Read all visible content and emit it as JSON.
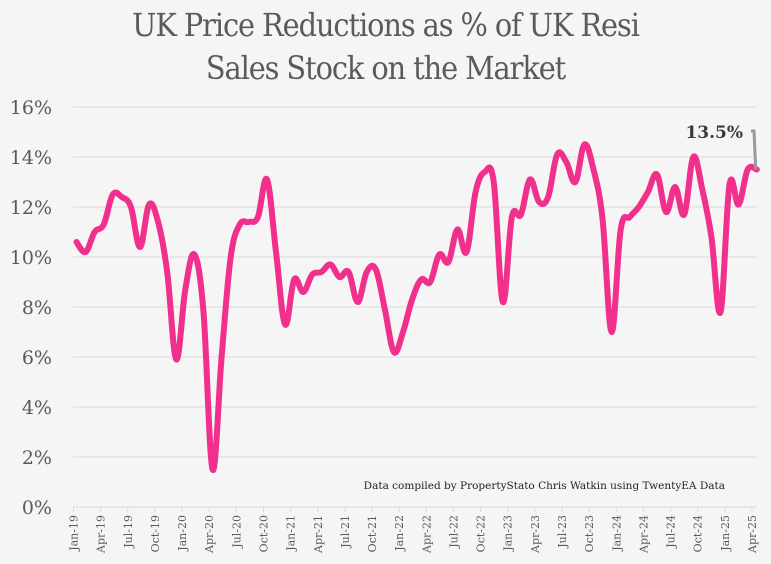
{
  "chart_data": {
    "type": "line",
    "title": "UK Price Reductions as % of UK Resi Sales Stock on the Market",
    "title_lines": [
      "UK Price Reductions as % of UK Resi",
      "Sales Stock on the Market"
    ],
    "xlabel": "",
    "ylabel": "",
    "ylim": [
      0,
      16
    ],
    "yticks": [
      0,
      2,
      4,
      6,
      8,
      10,
      12,
      14,
      16
    ],
    "ytick_labels": [
      "0%",
      "2%",
      "4%",
      "6%",
      "8%",
      "10%",
      "12%",
      "14%",
      "16%"
    ],
    "grid": true,
    "legend": "none",
    "x_tick_labels": [
      "Jan-19",
      "Apr-19",
      "Jul-19",
      "Oct-19",
      "Jan-20",
      "Apr-20",
      "Jul-20",
      "Oct-20",
      "Jan-21",
      "Apr-21",
      "Jul-21",
      "Oct-21",
      "Jan-22",
      "Apr-22",
      "Jul-22",
      "Oct-22",
      "Jan-23",
      "Apr-23",
      "Jul-23",
      "Oct-23",
      "Jan-24",
      "Apr-24",
      "Jul-24",
      "Oct-24",
      "Jan-25",
      "Apr-25"
    ],
    "x": [
      "Jan-19",
      "Feb-19",
      "Mar-19",
      "Apr-19",
      "May-19",
      "Jun-19",
      "Jul-19",
      "Aug-19",
      "Sep-19",
      "Oct-19",
      "Nov-19",
      "Dec-19",
      "Jan-20",
      "Feb-20",
      "Mar-20",
      "Apr-20",
      "May-20",
      "Jun-20",
      "Jul-20",
      "Aug-20",
      "Sep-20",
      "Oct-20",
      "Nov-20",
      "Dec-20",
      "Jan-21",
      "Feb-21",
      "Mar-21",
      "Apr-21",
      "May-21",
      "Jun-21",
      "Jul-21",
      "Aug-21",
      "Sep-21",
      "Oct-21",
      "Nov-21",
      "Dec-21",
      "Jan-22",
      "Feb-22",
      "Mar-22",
      "Apr-22",
      "May-22",
      "Jun-22",
      "Jul-22",
      "Aug-22",
      "Sep-22",
      "Oct-22",
      "Nov-22",
      "Dec-22",
      "Jan-23",
      "Feb-23",
      "Mar-23",
      "Apr-23",
      "May-23",
      "Jun-23",
      "Jul-23",
      "Aug-23",
      "Sep-23",
      "Oct-23",
      "Nov-23",
      "Dec-23",
      "Jan-24",
      "Feb-24",
      "Mar-24",
      "Apr-24",
      "May-24",
      "Jun-24",
      "Jul-24",
      "Aug-24",
      "Sep-24",
      "Oct-24",
      "Nov-24",
      "Dec-24",
      "Jan-25",
      "Feb-25",
      "Mar-25",
      "Apr-25"
    ],
    "series": [
      {
        "name": "Price reductions %",
        "color": "#f0308c",
        "values": [
          10.6,
          10.2,
          11.0,
          11.3,
          12.5,
          12.4,
          12.0,
          10.4,
          12.1,
          11.4,
          9.4,
          5.9,
          8.7,
          10.1,
          7.8,
          1.5,
          6.0,
          10.0,
          11.3,
          11.4,
          11.6,
          13.1,
          10.2,
          7.3,
          9.1,
          8.6,
          9.3,
          9.4,
          9.7,
          9.2,
          9.4,
          8.2,
          9.4,
          9.5,
          7.9,
          6.2,
          7.0,
          8.3,
          9.1,
          9.0,
          10.1,
          9.8,
          11.1,
          10.2,
          12.6,
          13.4,
          13.0,
          8.2,
          11.6,
          11.7,
          13.1,
          12.2,
          12.4,
          14.1,
          13.8,
          13.0,
          14.5,
          13.5,
          11.5,
          7.0,
          11.1,
          11.6,
          12.0,
          12.6,
          13.3,
          11.8,
          12.8,
          11.7,
          14.0,
          12.7,
          10.8,
          7.8,
          12.9,
          12.1,
          13.5,
          13.5
        ]
      }
    ],
    "annotations": [
      {
        "text": "13.5%",
        "point": "Apr-25"
      },
      {
        "text": "Data compiled by PropertyStato Chris Watkin using TwentyEA Data",
        "placement": "bottom-right"
      }
    ]
  },
  "colors": {
    "background": "#f4f5f4",
    "line": "#f0308c",
    "grid": "#dcdcdc",
    "text": "#5a5a5a",
    "leader": "#9a9a9a"
  }
}
